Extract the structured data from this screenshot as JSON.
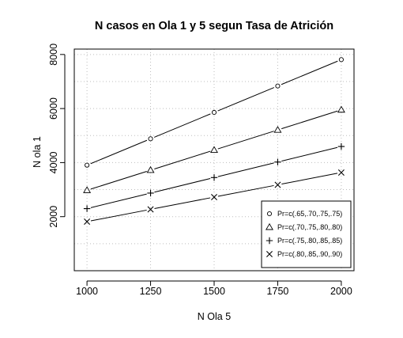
{
  "chart_data": {
    "type": "line",
    "title": "N casos en Ola 1 y 5 segun Tasa de Atrición",
    "xlabel": "N Ola 5",
    "ylabel": "N ola 1",
    "x": [
      1000,
      1250,
      1500,
      1750,
      2000
    ],
    "xlim": [
      950,
      2050
    ],
    "ylim": [
      0,
      8200
    ],
    "xticks": [
      1000,
      1250,
      1500,
      1750,
      2000
    ],
    "yticks": [
      2000,
      4000,
      6000,
      8000
    ],
    "grid": true,
    "legend_position": "bottom-right",
    "series": [
      {
        "name": "Pr=c(.65,.70,.75,.75)",
        "marker": "circle",
        "values": [
          3905,
          4881,
          5858,
          6834,
          7810
        ]
      },
      {
        "name": "Pr=c(.70,.75,.80,.80)",
        "marker": "triangle",
        "values": [
          2976,
          3720,
          4464,
          5208,
          5952
        ]
      },
      {
        "name": "Pr=c(.75,.80,.85,.85)",
        "marker": "plus",
        "values": [
          2298,
          2873,
          3447,
          4022,
          4596
        ]
      },
      {
        "name": "Pr=c(.80,.85,.90,.90)",
        "marker": "cross",
        "values": [
          1816,
          2270,
          2724,
          3178,
          3632
        ]
      }
    ],
    "colors": {
      "line": "#000000",
      "grid": "#bdbdbd",
      "frame": "#000000"
    }
  }
}
